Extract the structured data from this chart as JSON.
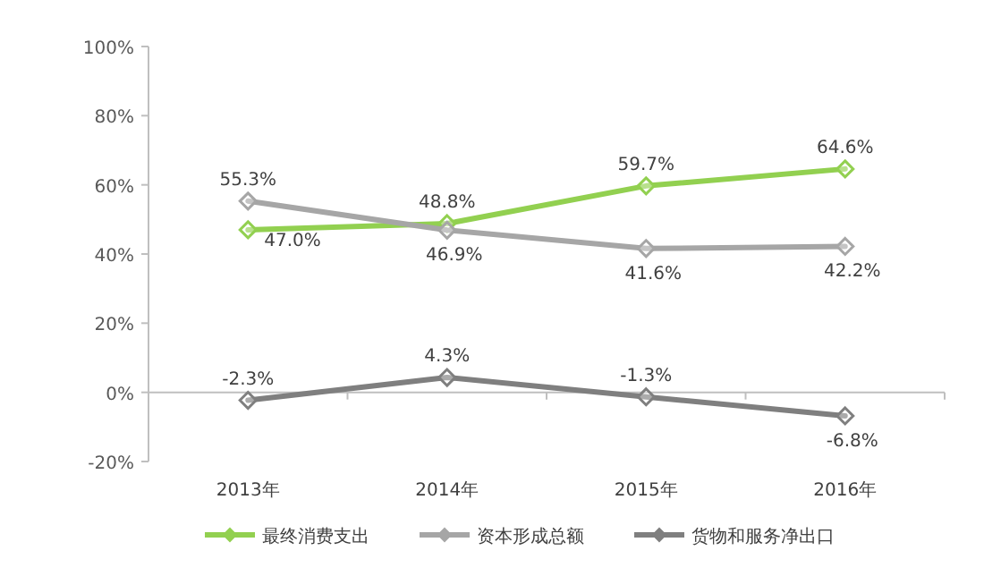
{
  "chart_data": {
    "type": "line",
    "categories": [
      "2013年",
      "2014年",
      "2015年",
      "2016年"
    ],
    "series": [
      {
        "name": "最终消费支出",
        "color": "#92d050",
        "values": [
          47.0,
          48.8,
          59.7,
          64.6
        ],
        "value_labels": [
          "47.0%",
          "48.8%",
          "59.7%",
          "64.6%"
        ]
      },
      {
        "name": "资本形成总额",
        "color": "#a6a6a6",
        "values": [
          55.3,
          46.9,
          41.6,
          42.2
        ],
        "value_labels": [
          "55.3%",
          "46.9%",
          "41.6%",
          "42.2%"
        ]
      },
      {
        "name": "货物和服务净出口",
        "color": "#7f7f7f",
        "values": [
          -2.3,
          4.3,
          -1.3,
          -6.8
        ],
        "value_labels": [
          "-2.3%",
          "4.3%",
          "-1.3%",
          "-6.8%"
        ]
      }
    ],
    "ylim": [
      -20,
      100
    ],
    "yticks": [
      {
        "value": -20,
        "label": "-20%"
      },
      {
        "value": 0,
        "label": "0%"
      },
      {
        "value": 20,
        "label": "20%"
      },
      {
        "value": 40,
        "label": "40%"
      },
      {
        "value": 60,
        "label": "60%"
      },
      {
        "value": 80,
        "label": "80%"
      },
      {
        "value": 100,
        "label": "100%"
      }
    ],
    "marker": "diamond",
    "line_style": "solid",
    "legend": "bottom"
  }
}
